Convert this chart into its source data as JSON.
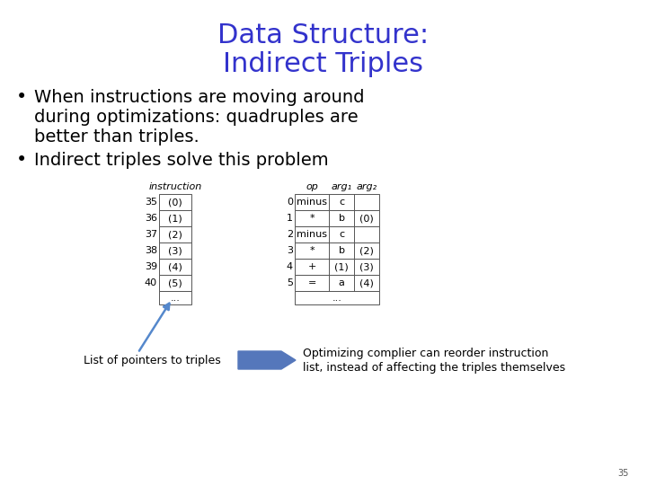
{
  "title_line1": "Data Structure:",
  "title_line2": "Indirect Triples",
  "title_color": "#3333cc",
  "bullet1_line1": "When instructions are moving around",
  "bullet1_line2": "during optimizations: quadruples are",
  "bullet1_line3": "better than triples.",
  "bullet2": "Indirect triples solve this problem",
  "left_table_header": "instruction",
  "left_table_rows": [
    [
      "35",
      "(0)"
    ],
    [
      "36",
      "(1)"
    ],
    [
      "37",
      "(2)"
    ],
    [
      "38",
      "(3)"
    ],
    [
      "39",
      "(4)"
    ],
    [
      "40",
      "(5)"
    ]
  ],
  "right_table_col_headers": [
    "op",
    "arg₁",
    "arg₂"
  ],
  "right_table_rows": [
    [
      "0",
      "minus",
      "c",
      ""
    ],
    [
      "1",
      "*",
      "b",
      "(0)"
    ],
    [
      "2",
      "minus",
      "c",
      ""
    ],
    [
      "3",
      "*",
      "b",
      "(2)"
    ],
    [
      "4",
      "+",
      "(1)",
      "(3)"
    ],
    [
      "5",
      "=",
      "a",
      "(4)"
    ]
  ],
  "list_label": "List of pointers to triples",
  "arrow_label_line1": "Optimizing complier can reorder instruction",
  "arrow_label_line2": "list, instead of affecting the triples themselves",
  "page_number": "35",
  "bg_color": "#ffffff",
  "title_fontsize": 22,
  "bullet_fontsize": 14,
  "table_fontsize": 8,
  "annotation_fontsize": 9
}
